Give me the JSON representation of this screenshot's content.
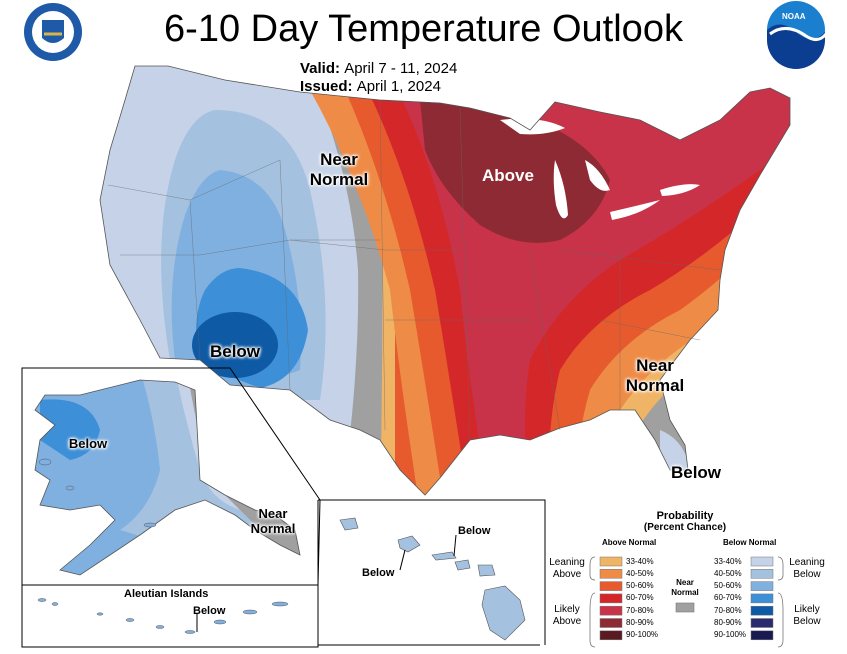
{
  "header": {
    "title": "6-10 Day Temperature Outlook",
    "valid_label": "Valid:",
    "valid_value": "April 7 - 11, 2024",
    "issued_label": "Issued:",
    "issued_value": "April 1, 2024"
  },
  "logos": {
    "commerce": "Department of Commerce seal",
    "noaa": "NOAA"
  },
  "map_labels": {
    "near_normal_west": "Near Normal",
    "above": "Above",
    "below_southwest": "Below",
    "near_normal_southeast": "Near Normal",
    "below_florida": "Below",
    "alaska_below": "Below",
    "alaska_near_normal": "Near Normal",
    "hawaii_below_1": "Below",
    "hawaii_below_2": "Below",
    "aleutian_title": "Aleutian Islands",
    "aleutian_below": "Below"
  },
  "legend": {
    "title": "Probability",
    "subtitle": "(Percent Chance)",
    "above_header": "Above Normal",
    "below_header": "Below Normal",
    "near_normal_label": "Near Normal",
    "leaning_above": "Leaning Above",
    "likely_above": "Likely Above",
    "leaning_below": "Leaning Below",
    "likely_below": "Likely Below",
    "above_bins": [
      "33-40%",
      "40-50%",
      "50-60%",
      "60-70%",
      "70-80%",
      "80-90%",
      "90-100%"
    ],
    "below_bins": [
      "33-40%",
      "40-50%",
      "50-60%",
      "60-70%",
      "70-80%",
      "80-90%",
      "90-100%"
    ]
  },
  "colors": {
    "above": [
      "#f0b466",
      "#ee8c47",
      "#e65a2e",
      "#d4272a",
      "#c8334a",
      "#8e2a33",
      "#5a1a22"
    ],
    "below": [
      "#c5d2e8",
      "#a4c1e0",
      "#80b0e0",
      "#3d8fd8",
      "#0e5aa4",
      "#2a2a6e",
      "#1a1a52"
    ],
    "near_normal": "#a0a0a0"
  }
}
